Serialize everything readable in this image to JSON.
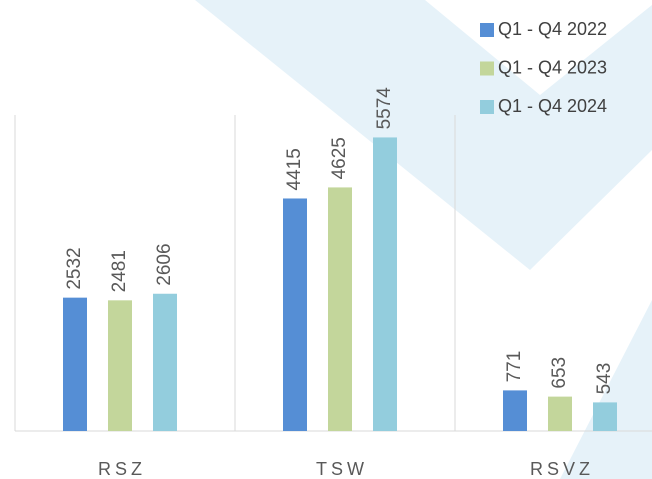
{
  "chart_data": {
    "type": "bar",
    "categories": [
      "RSZ",
      "TSW",
      "RSVZ"
    ],
    "series": [
      {
        "name": "Q1 - Q4 2022",
        "color": "#558ed5",
        "values": [
          2532,
          4415,
          771
        ]
      },
      {
        "name": "Q1 - Q4 2023",
        "color": "#c3d69b",
        "values": [
          2481,
          4625,
          653
        ]
      },
      {
        "name": "Q1 - Q4 2024",
        "color": "#93cddd",
        "values": [
          2606,
          5574,
          543
        ]
      }
    ],
    "ylim": [
      0,
      6000
    ]
  }
}
